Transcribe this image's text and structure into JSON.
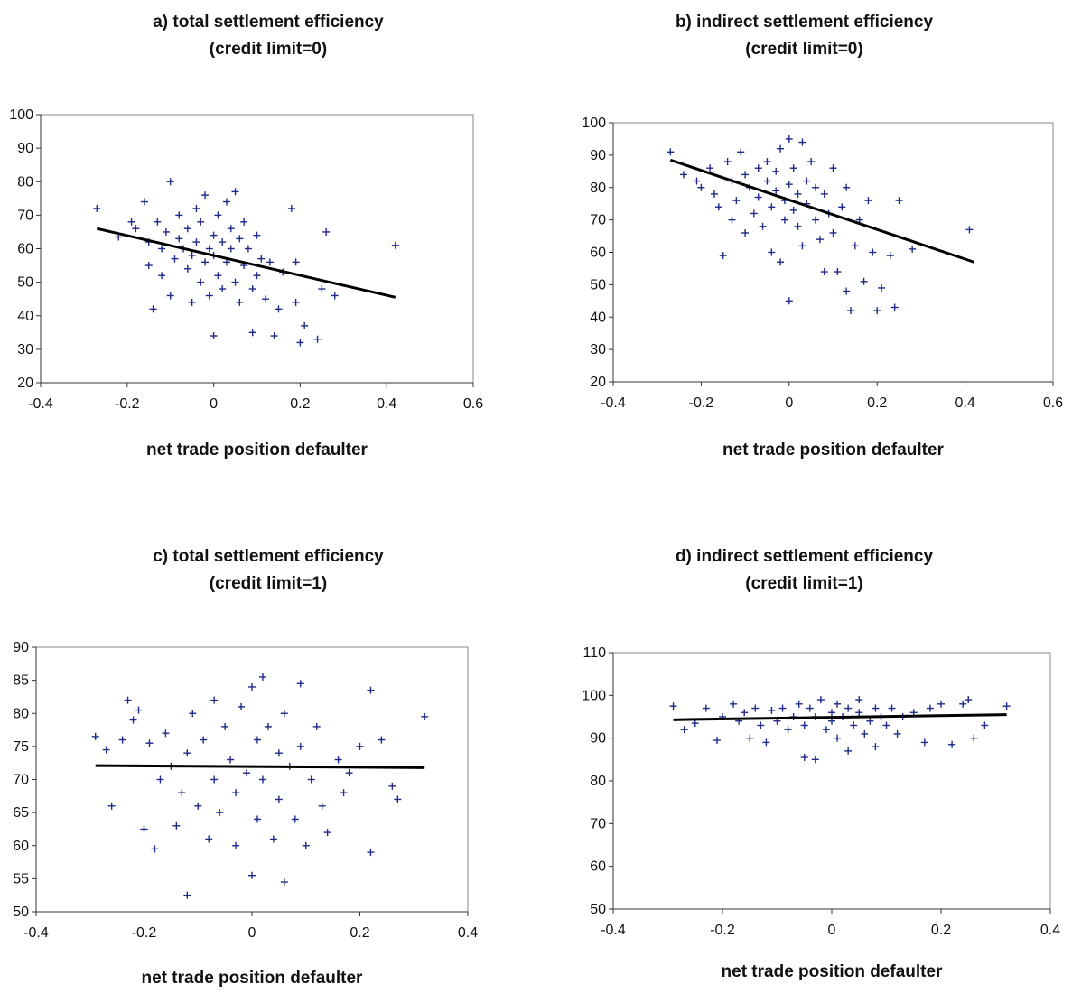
{
  "chart_data": [
    {
      "type": "scatter",
      "title": [
        "a) total settlement efficiency",
        "(credit limit=0)"
      ],
      "xlabel": "net trade position defaulter",
      "ylabel": "",
      "xlim": [
        -0.4,
        0.6
      ],
      "ylim": [
        20,
        100
      ],
      "xticks": [
        "-0.4",
        "-0.2",
        "0",
        "0.2",
        "0.4",
        "0.6"
      ],
      "yticks": [
        "20",
        "30",
        "40",
        "50",
        "60",
        "70",
        "80",
        "90",
        "100"
      ],
      "marker_color": "#1f2a8a",
      "trendline": {
        "x": [
          -0.27,
          0.42
        ],
        "y": [
          66,
          45.5
        ]
      },
      "points": [
        [
          -0.27,
          72
        ],
        [
          -0.22,
          63.5
        ],
        [
          -0.19,
          68
        ],
        [
          -0.18,
          66
        ],
        [
          -0.16,
          74
        ],
        [
          -0.15,
          62
        ],
        [
          -0.15,
          55
        ],
        [
          -0.14,
          42
        ],
        [
          -0.13,
          68
        ],
        [
          -0.12,
          60
        ],
        [
          -0.12,
          52
        ],
        [
          -0.11,
          65
        ],
        [
          -0.1,
          80
        ],
        [
          -0.1,
          46
        ],
        [
          -0.09,
          57
        ],
        [
          -0.08,
          63
        ],
        [
          -0.08,
          70
        ],
        [
          -0.07,
          60
        ],
        [
          -0.06,
          66
        ],
        [
          -0.06,
          54
        ],
        [
          -0.05,
          44
        ],
        [
          -0.05,
          58
        ],
        [
          -0.04,
          62
        ],
        [
          -0.04,
          72
        ],
        [
          -0.03,
          50
        ],
        [
          -0.03,
          68
        ],
        [
          -0.02,
          56
        ],
        [
          -0.02,
          76
        ],
        [
          -0.01,
          60
        ],
        [
          -0.01,
          46
        ],
        [
          0.0,
          34
        ],
        [
          0.0,
          64
        ],
        [
          0.0,
          58
        ],
        [
          0.01,
          70
        ],
        [
          0.01,
          52
        ],
        [
          0.02,
          62
        ],
        [
          0.02,
          48
        ],
        [
          0.03,
          74
        ],
        [
          0.03,
          56
        ],
        [
          0.04,
          66
        ],
        [
          0.04,
          60
        ],
        [
          0.05,
          77
        ],
        [
          0.05,
          50
        ],
        [
          0.06,
          63
        ],
        [
          0.06,
          44
        ],
        [
          0.07,
          68
        ],
        [
          0.07,
          55
        ],
        [
          0.08,
          60
        ],
        [
          0.09,
          35
        ],
        [
          0.09,
          48
        ],
        [
          0.1,
          64
        ],
        [
          0.1,
          52
        ],
        [
          0.11,
          57
        ],
        [
          0.12,
          45
        ],
        [
          0.13,
          56
        ],
        [
          0.14,
          34
        ],
        [
          0.15,
          42
        ],
        [
          0.16,
          53
        ],
        [
          0.18,
          72
        ],
        [
          0.19,
          56
        ],
        [
          0.19,
          44
        ],
        [
          0.2,
          32
        ],
        [
          0.21,
          37
        ],
        [
          0.24,
          33
        ],
        [
          0.25,
          48
        ],
        [
          0.26,
          65
        ],
        [
          0.28,
          46
        ],
        [
          0.42,
          61
        ]
      ]
    },
    {
      "type": "scatter",
      "title": [
        "b) indirect settlement efficiency",
        "(credit limit=0)"
      ],
      "xlabel": "net trade position defaulter",
      "ylabel": "",
      "xlim": [
        -0.4,
        0.6
      ],
      "ylim": [
        20,
        100
      ],
      "xticks": [
        "-0.4",
        "-0.2",
        "0",
        "0.2",
        "0.4",
        "0.6"
      ],
      "yticks": [
        "20",
        "30",
        "40",
        "50",
        "60",
        "70",
        "80",
        "90",
        "100"
      ],
      "marker_color": "#1f2a8a",
      "trendline": {
        "x": [
          -0.27,
          0.42
        ],
        "y": [
          88.5,
          57
        ]
      },
      "points": [
        [
          -0.27,
          91
        ],
        [
          -0.24,
          84
        ],
        [
          -0.21,
          82
        ],
        [
          -0.2,
          80
        ],
        [
          -0.18,
          86
        ],
        [
          -0.17,
          78
        ],
        [
          -0.16,
          74
        ],
        [
          -0.15,
          59
        ],
        [
          -0.14,
          88
        ],
        [
          -0.13,
          82
        ],
        [
          -0.13,
          70
        ],
        [
          -0.12,
          76
        ],
        [
          -0.11,
          91
        ],
        [
          -0.1,
          84
        ],
        [
          -0.1,
          66
        ],
        [
          -0.09,
          80
        ],
        [
          -0.08,
          72
        ],
        [
          -0.07,
          86
        ],
        [
          -0.07,
          77
        ],
        [
          -0.06,
          68
        ],
        [
          -0.05,
          82
        ],
        [
          -0.05,
          88
        ],
        [
          -0.04,
          74
        ],
        [
          -0.04,
          60
        ],
        [
          -0.03,
          79
        ],
        [
          -0.03,
          85
        ],
        [
          -0.02,
          57
        ],
        [
          -0.02,
          92
        ],
        [
          -0.01,
          76
        ],
        [
          -0.01,
          70
        ],
        [
          0.0,
          95
        ],
        [
          0.0,
          81
        ],
        [
          0.0,
          45
        ],
        [
          0.01,
          73
        ],
        [
          0.01,
          86
        ],
        [
          0.02,
          68
        ],
        [
          0.02,
          78
        ],
        [
          0.03,
          94
        ],
        [
          0.03,
          62
        ],
        [
          0.04,
          82
        ],
        [
          0.04,
          75
        ],
        [
          0.05,
          88
        ],
        [
          0.06,
          70
        ],
        [
          0.06,
          80
        ],
        [
          0.07,
          64
        ],
        [
          0.08,
          78
        ],
        [
          0.08,
          54
        ],
        [
          0.09,
          72
        ],
        [
          0.1,
          86
        ],
        [
          0.1,
          66
        ],
        [
          0.11,
          54
        ],
        [
          0.12,
          74
        ],
        [
          0.13,
          80
        ],
        [
          0.13,
          48
        ],
        [
          0.14,
          42
        ],
        [
          0.15,
          62
        ],
        [
          0.16,
          70
        ],
        [
          0.17,
          51
        ],
        [
          0.18,
          76
        ],
        [
          0.19,
          60
        ],
        [
          0.2,
          42
        ],
        [
          0.21,
          49
        ],
        [
          0.23,
          59
        ],
        [
          0.24,
          43
        ],
        [
          0.25,
          76
        ],
        [
          0.28,
          61
        ],
        [
          0.41,
          67
        ]
      ]
    },
    {
      "type": "scatter",
      "title": [
        "c) total settlement efficiency",
        "(credit limit=1)"
      ],
      "xlabel": "net trade position defaulter",
      "ylabel": "",
      "xlim": [
        -0.4,
        0.4
      ],
      "ylim": [
        50,
        90
      ],
      "xticks": [
        "-0.4",
        "-0.2",
        "0",
        "0.2",
        "0.4"
      ],
      "yticks": [
        "50",
        "55",
        "60",
        "65",
        "70",
        "75",
        "80",
        "85",
        "90"
      ],
      "marker_color": "#1f2a8a",
      "trendline": {
        "x": [
          -0.29,
          0.32
        ],
        "y": [
          72.1,
          71.8
        ]
      },
      "points": [
        [
          -0.29,
          76.5
        ],
        [
          -0.27,
          74.5
        ],
        [
          -0.26,
          66
        ],
        [
          -0.24,
          76
        ],
        [
          -0.23,
          82
        ],
        [
          -0.22,
          79
        ],
        [
          -0.21,
          80.5
        ],
        [
          -0.2,
          62.5
        ],
        [
          -0.19,
          75.5
        ],
        [
          -0.18,
          59.5
        ],
        [
          -0.17,
          70
        ],
        [
          -0.16,
          77
        ],
        [
          -0.15,
          72
        ],
        [
          -0.14,
          63
        ],
        [
          -0.13,
          68
        ],
        [
          -0.12,
          74
        ],
        [
          -0.12,
          52.5
        ],
        [
          -0.11,
          80
        ],
        [
          -0.1,
          66
        ],
        [
          -0.09,
          76
        ],
        [
          -0.08,
          61
        ],
        [
          -0.07,
          82
        ],
        [
          -0.07,
          70
        ],
        [
          -0.06,
          65
        ],
        [
          -0.05,
          78
        ],
        [
          -0.04,
          73
        ],
        [
          -0.03,
          60
        ],
        [
          -0.03,
          68
        ],
        [
          -0.02,
          81
        ],
        [
          -0.01,
          71
        ],
        [
          0.0,
          84
        ],
        [
          0.0,
          55.5
        ],
        [
          0.01,
          76
        ],
        [
          0.01,
          64
        ],
        [
          0.02,
          85.5
        ],
        [
          0.02,
          70
        ],
        [
          0.03,
          78
        ],
        [
          0.04,
          61
        ],
        [
          0.05,
          74
        ],
        [
          0.05,
          67
        ],
        [
          0.06,
          80
        ],
        [
          0.06,
          54.5
        ],
        [
          0.07,
          72
        ],
        [
          0.08,
          64
        ],
        [
          0.09,
          84.5
        ],
        [
          0.09,
          75
        ],
        [
          0.1,
          60
        ],
        [
          0.11,
          70
        ],
        [
          0.12,
          78
        ],
        [
          0.13,
          66
        ],
        [
          0.14,
          62
        ],
        [
          0.16,
          73
        ],
        [
          0.17,
          68
        ],
        [
          0.18,
          71
        ],
        [
          0.2,
          75
        ],
        [
          0.22,
          83.5
        ],
        [
          0.22,
          59
        ],
        [
          0.24,
          76
        ],
        [
          0.26,
          69
        ],
        [
          0.27,
          67
        ],
        [
          0.32,
          79.5
        ]
      ]
    },
    {
      "type": "scatter",
      "title": [
        "d) indirect settlement efficiency",
        "(credit limit=1)"
      ],
      "xlabel": "net trade position defaulter",
      "ylabel": "",
      "xlim": [
        -0.4,
        0.4
      ],
      "ylim": [
        50,
        110
      ],
      "xticks": [
        "-0.4",
        "-0.2",
        "0",
        "0.2",
        "0.4"
      ],
      "yticks": [
        "50",
        "60",
        "70",
        "80",
        "90",
        "100",
        "110"
      ],
      "marker_color": "#1f2a8a",
      "trendline": {
        "x": [
          -0.29,
          0.32
        ],
        "y": [
          94.3,
          95.5
        ]
      },
      "points": [
        [
          -0.29,
          97.5
        ],
        [
          -0.27,
          92
        ],
        [
          -0.25,
          93.5
        ],
        [
          -0.23,
          97
        ],
        [
          -0.21,
          89.5
        ],
        [
          -0.2,
          95
        ],
        [
          -0.18,
          98
        ],
        [
          -0.17,
          94
        ],
        [
          -0.16,
          96
        ],
        [
          -0.15,
          90
        ],
        [
          -0.14,
          97
        ],
        [
          -0.13,
          93
        ],
        [
          -0.12,
          89
        ],
        [
          -0.11,
          96.5
        ],
        [
          -0.1,
          94
        ],
        [
          -0.09,
          97
        ],
        [
          -0.08,
          92
        ],
        [
          -0.07,
          95
        ],
        [
          -0.06,
          98
        ],
        [
          -0.05,
          93
        ],
        [
          -0.05,
          85.5
        ],
        [
          -0.04,
          97
        ],
        [
          -0.03,
          95
        ],
        [
          -0.03,
          85
        ],
        [
          -0.02,
          99
        ],
        [
          -0.01,
          92
        ],
        [
          0.0,
          96
        ],
        [
          0.0,
          94
        ],
        [
          0.01,
          98
        ],
        [
          0.01,
          90
        ],
        [
          0.02,
          95
        ],
        [
          0.03,
          97
        ],
        [
          0.03,
          87
        ],
        [
          0.04,
          93
        ],
        [
          0.05,
          96
        ],
        [
          0.05,
          99
        ],
        [
          0.06,
          91
        ],
        [
          0.07,
          94
        ],
        [
          0.08,
          97
        ],
        [
          0.08,
          88
        ],
        [
          0.09,
          95
        ],
        [
          0.1,
          93
        ],
        [
          0.11,
          97
        ],
        [
          0.12,
          91
        ],
        [
          0.13,
          95
        ],
        [
          0.15,
          96
        ],
        [
          0.17,
          89
        ],
        [
          0.18,
          97
        ],
        [
          0.2,
          98
        ],
        [
          0.22,
          88.5
        ],
        [
          0.24,
          98
        ],
        [
          0.25,
          99
        ],
        [
          0.26,
          90
        ],
        [
          0.28,
          93
        ],
        [
          0.32,
          97.5
        ]
      ]
    }
  ]
}
